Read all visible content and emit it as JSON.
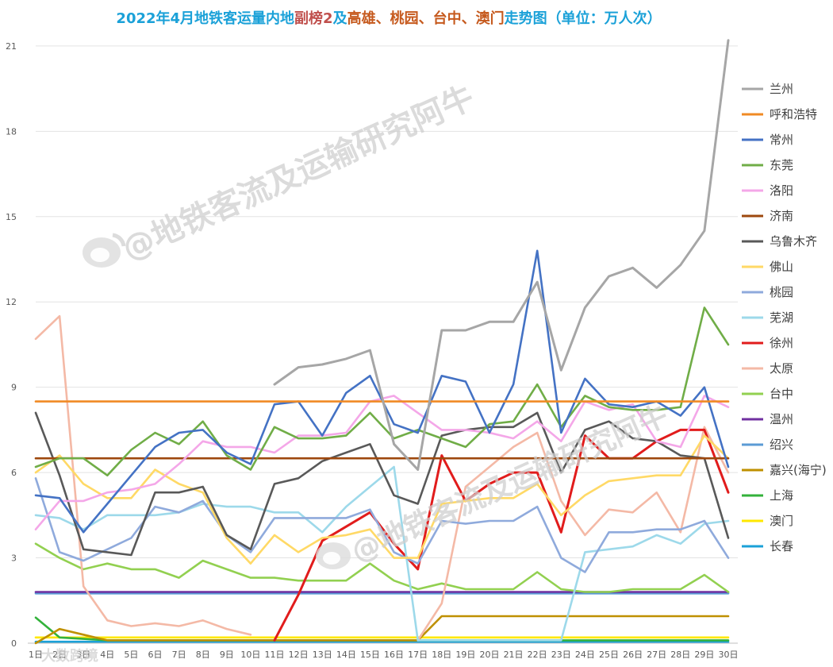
{
  "chart_data": {
    "type": "line",
    "title_parts": [
      {
        "text": "2022年4月地铁客运量内地",
        "color": "#1ba1d8"
      },
      {
        "text": "副榜2",
        "color": "#c0504d"
      },
      {
        "text": "及",
        "color": "#1ba1d8"
      },
      {
        "text": "高雄、桃园、台中、澳门",
        "color": "#c65a1e"
      },
      {
        "text": "走势图（单位：万人次）",
        "color": "#1ba1d8"
      }
    ],
    "ylim": [
      0,
      21.5
    ],
    "yticks": [
      "0",
      "3",
      "6",
      "9",
      "12",
      "15",
      "18",
      "21"
    ],
    "categories": [
      "1日",
      "2日",
      "3日",
      "4日",
      "5日",
      "6日",
      "7日",
      "8日",
      "9日",
      "10日",
      "11日",
      "12日",
      "13日",
      "14日",
      "15日",
      "16日",
      "17日",
      "18日",
      "19日",
      "20日",
      "21日",
      "22日",
      "23日",
      "24日",
      "25日",
      "26日",
      "27日",
      "28日",
      "29日",
      "30日"
    ],
    "grid": "horizontal",
    "legend_position": "right",
    "series": [
      {
        "name": "兰州",
        "color": "#a6a6a6",
        "values": [
          null,
          null,
          null,
          null,
          null,
          null,
          null,
          null,
          null,
          null,
          9.1,
          9.7,
          9.8,
          10.0,
          10.3,
          7.0,
          6.1,
          11.0,
          11.0,
          11.3,
          11.3,
          12.7,
          9.6,
          11.8,
          12.9,
          13.2,
          12.5,
          13.3,
          14.5,
          21.2
        ]
      },
      {
        "name": "呼和浩特",
        "color": "#f08a24",
        "values": [
          8.5,
          8.5,
          8.5,
          8.5,
          8.5,
          8.5,
          8.5,
          8.5,
          8.5,
          8.5,
          8.5,
          8.5,
          8.5,
          8.5,
          8.5,
          8.5,
          8.5,
          8.5,
          8.5,
          8.5,
          8.5,
          8.5,
          8.5,
          8.5,
          8.5,
          8.5,
          8.5,
          8.5,
          8.5,
          8.5
        ]
      },
      {
        "name": "常州",
        "color": "#4472c4",
        "values": [
          5.2,
          5.1,
          3.9,
          4.9,
          5.9,
          6.9,
          7.4,
          7.5,
          6.7,
          6.3,
          8.4,
          8.5,
          7.3,
          8.8,
          9.4,
          7.7,
          7.4,
          9.4,
          9.2,
          7.4,
          9.1,
          13.8,
          7.4,
          9.3,
          8.4,
          8.3,
          8.5,
          8.0,
          9.0,
          6.2
        ]
      },
      {
        "name": "东莞",
        "color": "#70ad47",
        "values": [
          6.2,
          6.5,
          6.5,
          5.9,
          6.8,
          7.4,
          7.0,
          7.8,
          6.6,
          6.1,
          7.6,
          7.2,
          7.2,
          7.3,
          8.1,
          7.2,
          7.5,
          7.2,
          6.9,
          7.7,
          7.8,
          9.1,
          7.6,
          8.7,
          8.3,
          8.2,
          8.2,
          8.3,
          11.8,
          10.5
        ]
      },
      {
        "name": "洛阳",
        "color": "#f4a7e8",
        "values": [
          4.0,
          5.0,
          5.0,
          5.3,
          5.4,
          5.6,
          6.3,
          7.1,
          6.9,
          6.9,
          6.7,
          7.3,
          7.3,
          7.4,
          8.5,
          8.7,
          8.1,
          7.5,
          7.5,
          7.4,
          7.2,
          7.8,
          7.1,
          8.5,
          8.2,
          8.4,
          7.1,
          6.9,
          8.7,
          8.3
        ]
      },
      {
        "name": "济南",
        "color": "#9e480e",
        "values": [
          6.5,
          6.5,
          6.5,
          6.5,
          6.5,
          6.5,
          6.5,
          6.5,
          6.5,
          6.5,
          6.5,
          6.5,
          6.5,
          6.5,
          6.5,
          6.5,
          6.5,
          6.5,
          6.5,
          6.5,
          6.5,
          6.5,
          6.5,
          6.5,
          6.5,
          6.5,
          6.5,
          6.5,
          6.5,
          6.5
        ]
      },
      {
        "name": "乌鲁木齐",
        "color": "#595959",
        "values": [
          8.1,
          5.9,
          3.3,
          3.2,
          3.1,
          5.3,
          5.3,
          5.5,
          3.8,
          3.3,
          5.6,
          5.8,
          6.4,
          6.7,
          7.0,
          5.2,
          4.9,
          7.3,
          7.5,
          7.6,
          7.6,
          8.1,
          6.0,
          7.5,
          7.8,
          7.2,
          7.1,
          6.6,
          6.5,
          3.7
        ]
      },
      {
        "name": "佛山",
        "color": "#ffd966",
        "values": [
          6.0,
          6.6,
          5.6,
          5.1,
          5.1,
          6.1,
          5.6,
          5.3,
          3.7,
          2.8,
          3.8,
          3.2,
          3.7,
          3.8,
          4.0,
          3.0,
          3.0,
          4.9,
          5.0,
          5.1,
          5.1,
          5.6,
          4.5,
          5.2,
          5.7,
          5.8,
          5.9,
          5.9,
          7.3,
          6.5
        ]
      },
      {
        "name": "桃园",
        "color": "#8faadc",
        "values": [
          5.8,
          3.2,
          2.9,
          3.3,
          3.7,
          4.8,
          4.6,
          5.0,
          3.8,
          3.2,
          4.4,
          4.4,
          4.4,
          4.4,
          4.7,
          3.2,
          2.8,
          4.3,
          4.2,
          4.3,
          4.3,
          4.8,
          3.0,
          2.5,
          3.9,
          3.9,
          4.0,
          4.0,
          4.3,
          3.0
        ]
      },
      {
        "name": "芜湖",
        "color": "#9dd9ea",
        "values": [
          4.5,
          4.4,
          4.0,
          4.5,
          4.5,
          4.5,
          4.6,
          4.9,
          4.8,
          4.8,
          4.6,
          4.6,
          3.9,
          4.8,
          5.5,
          6.2,
          0.1,
          0.1,
          0.1,
          0.1,
          0.1,
          0.1,
          0.1,
          3.2,
          3.3,
          3.4,
          3.8,
          3.5,
          4.2,
          4.3
        ]
      },
      {
        "name": "徐州",
        "color": "#e11c1c",
        "values": [
          null,
          null,
          null,
          null,
          null,
          null,
          null,
          null,
          null,
          null,
          0.1,
          1.7,
          3.6,
          4.1,
          4.6,
          3.5,
          2.6,
          6.6,
          5.0,
          5.6,
          6.0,
          6.0,
          3.9,
          7.3,
          6.5,
          6.5,
          7.1,
          7.5,
          7.5,
          5.3
        ]
      },
      {
        "name": "太原",
        "color": "#f4b9a6",
        "values": [
          10.7,
          11.5,
          2.0,
          0.8,
          0.6,
          0.7,
          0.6,
          0.8,
          0.5,
          0.3,
          null,
          null,
          null,
          null,
          null,
          null,
          0.1,
          1.4,
          5.5,
          6.2,
          6.9,
          7.4,
          5.0,
          3.8,
          4.7,
          4.6,
          5.3,
          3.9,
          7.6,
          6.0
        ]
      },
      {
        "name": "台中",
        "color": "#92d050",
        "values": [
          3.5,
          3.0,
          2.6,
          2.8,
          2.6,
          2.6,
          2.3,
          2.9,
          2.6,
          2.3,
          2.3,
          2.2,
          2.2,
          2.2,
          2.8,
          2.2,
          1.9,
          2.1,
          1.9,
          1.9,
          1.9,
          2.5,
          1.9,
          1.8,
          1.8,
          1.9,
          1.9,
          1.9,
          2.4,
          1.8
        ]
      },
      {
        "name": "温州",
        "color": "#7030a0",
        "values": [
          1.8,
          1.8,
          1.8,
          1.8,
          1.8,
          1.8,
          1.8,
          1.8,
          1.8,
          1.8,
          1.8,
          1.8,
          1.8,
          1.8,
          1.8,
          1.8,
          1.8,
          1.8,
          1.8,
          1.8,
          1.8,
          1.8,
          1.8,
          1.8,
          1.8,
          1.8,
          1.8,
          1.8,
          1.8,
          1.8
        ]
      },
      {
        "name": "绍兴",
        "color": "#5b9bd5",
        "values": [
          1.75,
          1.75,
          1.75,
          1.75,
          1.75,
          1.75,
          1.75,
          1.75,
          1.75,
          1.75,
          1.75,
          1.75,
          1.75,
          1.75,
          1.75,
          1.75,
          1.75,
          1.75,
          1.75,
          1.75,
          1.75,
          1.75,
          1.75,
          1.75,
          1.75,
          1.75,
          1.75,
          1.75,
          1.75,
          1.75
        ]
      },
      {
        "name": "嘉兴(海宁)",
        "color": "#bf9000",
        "values": [
          0.0,
          0.5,
          0.3,
          0.1,
          0.1,
          0.1,
          0.1,
          0.1,
          0.1,
          0.1,
          0.1,
          0.1,
          0.1,
          0.1,
          0.1,
          0.1,
          0.1,
          0.95,
          0.95,
          0.95,
          0.95,
          0.95,
          0.95,
          0.95,
          0.95,
          0.95,
          0.95,
          0.95,
          0.95,
          0.95
        ]
      },
      {
        "name": "上海",
        "color": "#33b23b",
        "values": [
          0.9,
          0.2,
          0.15,
          0.1,
          0.1,
          0.1,
          0.1,
          0.1,
          0.1,
          0.1,
          0.1,
          0.1,
          0.1,
          0.1,
          0.1,
          0.1,
          0.1,
          0.1,
          0.1,
          0.1,
          0.1,
          0.1,
          0.1,
          0.1,
          0.1,
          0.1,
          0.1,
          0.1,
          0.1,
          0.1
        ]
      },
      {
        "name": "澳门",
        "color": "#ffe800",
        "values": [
          0.2,
          0.2,
          0.2,
          0.2,
          0.2,
          0.2,
          0.2,
          0.2,
          0.2,
          0.2,
          0.2,
          0.2,
          0.2,
          0.2,
          0.2,
          0.2,
          0.2,
          0.2,
          0.2,
          0.2,
          0.2,
          0.2,
          0.2,
          0.2,
          0.2,
          0.2,
          0.2,
          0.2,
          0.2,
          0.2
        ]
      },
      {
        "name": "长春",
        "color": "#1ba1d8",
        "values": [
          0.05,
          0.05,
          0.05,
          0.05,
          0.05,
          0.05,
          0.05,
          0.05,
          0.05,
          0.05,
          0.05,
          0.05,
          0.05,
          0.05,
          0.05,
          0.05,
          0.05,
          0.05,
          0.05,
          0.05,
          0.05,
          0.05,
          0.05,
          0.05,
          0.05,
          0.05,
          0.05,
          0.05,
          0.05,
          0.05
        ]
      }
    ]
  },
  "watermarks": {
    "main": "@地铁客流及运输研究阿牛",
    "corner": "大数跨境"
  }
}
